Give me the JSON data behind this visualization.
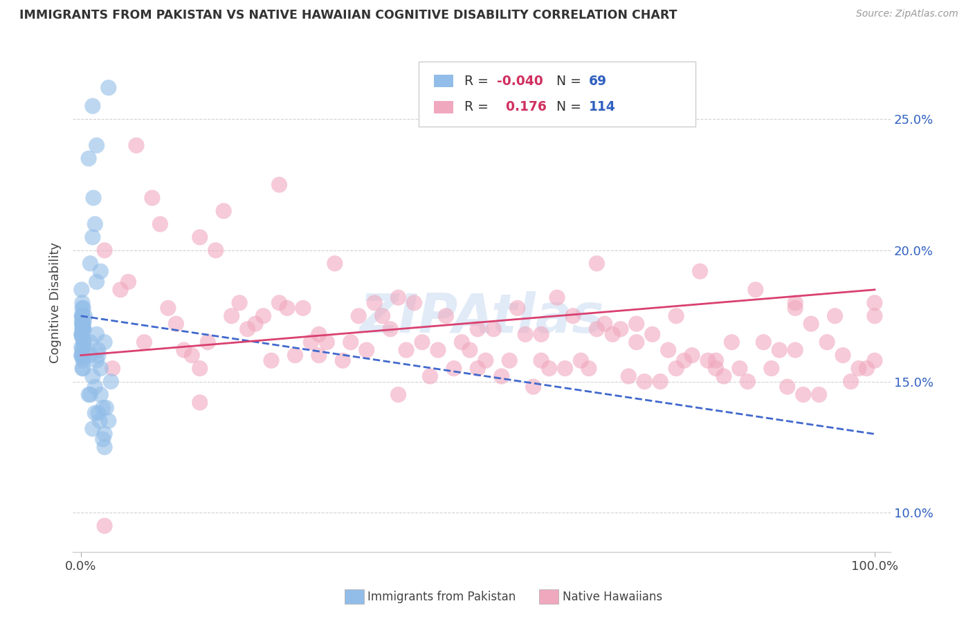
{
  "title": "IMMIGRANTS FROM PAKISTAN VS NATIVE HAWAIIAN COGNITIVE DISABILITY CORRELATION CHART",
  "source_text": "Source: ZipAtlas.com",
  "ylabel": "Cognitive Disability",
  "watermark": "ZIPAtlas",
  "legend_r1": "-0.040",
  "legend_n1": "69",
  "legend_r2": "0.176",
  "legend_n2": "114",
  "blue_color": "#92bde8",
  "pink_color": "#f0a8be",
  "trend_blue_color": "#4169cd",
  "trend_pink_color": "#d94070",
  "grid_color": "#cccccc",
  "background_color": "#ffffff",
  "yticks": [
    10.0,
    15.0,
    20.0,
    25.0
  ],
  "ymin": 8.5,
  "ymax": 27.5,
  "xmin": -1.0,
  "xmax": 102.0,
  "blue_trend_x": [
    0.0,
    100.0
  ],
  "blue_trend_y": [
    17.5,
    13.0
  ],
  "pink_trend_x": [
    0.0,
    100.0
  ],
  "pink_trend_y": [
    16.0,
    18.5
  ],
  "blue_x": [
    0.15,
    0.2,
    0.1,
    0.3,
    0.25,
    0.1,
    0.2,
    0.4,
    0.15,
    0.3,
    0.5,
    0.2,
    0.35,
    0.15,
    0.25,
    0.1,
    0.2,
    0.3,
    0.4,
    0.15,
    0.25,
    0.2,
    0.1,
    0.3,
    0.2,
    0.15,
    0.35,
    0.25,
    0.1,
    0.4,
    0.2,
    0.3,
    0.15,
    0.25,
    0.2,
    1.2,
    1.5,
    2.0,
    2.5,
    1.8,
    3.0,
    1.2,
    2.2,
    1.5,
    3.5,
    2.8,
    1.0,
    2.0,
    3.2,
    1.6,
    2.4,
    1.8,
    3.0,
    1.2,
    2.5,
    2.0,
    1.5,
    3.8,
    2.2,
    1.0,
    3.5,
    2.8,
    1.2,
    1.8,
    2.5,
    2.0,
    3.0,
    1.5,
    2.2
  ],
  "blue_y": [
    16.8,
    17.2,
    18.5,
    15.5,
    17.0,
    16.0,
    17.8,
    16.5,
    17.3,
    15.8,
    17.5,
    16.2,
    17.0,
    16.8,
    17.5,
    16.3,
    17.1,
    15.9,
    17.3,
    16.7,
    17.2,
    15.5,
    16.0,
    17.8,
    17.0,
    17.5,
    16.5,
    17.2,
    16.8,
    17.0,
    18.0,
    16.3,
    17.5,
    16.0,
    17.2,
    19.5,
    20.5,
    18.8,
    19.2,
    21.0,
    13.0,
    14.5,
    13.8,
    25.5,
    26.2,
    12.8,
    23.5,
    24.0,
    14.0,
    22.0,
    13.5,
    14.8,
    16.5,
    16.0,
    15.5,
    16.8,
    15.2,
    15.0,
    16.2,
    14.5,
    13.5,
    14.0,
    16.5,
    13.8,
    14.5,
    15.8,
    12.5,
    13.2,
    16.0
  ],
  "pink_x": [
    5.0,
    12.0,
    18.0,
    25.0,
    30.0,
    38.0,
    42.0,
    48.0,
    55.0,
    60.0,
    65.0,
    72.0,
    78.0,
    85.0,
    90.0,
    95.0,
    8.0,
    15.0,
    22.0,
    28.0,
    35.0,
    45.0,
    52.0,
    58.0,
    62.0,
    68.0,
    75.0,
    82.0,
    88.0,
    98.0,
    3.0,
    10.0,
    20.0,
    32.0,
    40.0,
    50.0,
    58.0,
    70.0,
    80.0,
    92.0,
    6.0,
    16.0,
    26.0,
    36.0,
    46.0,
    56.0,
    66.0,
    76.0,
    86.0,
    96.0,
    4.0,
    14.0,
    24.0,
    34.0,
    44.0,
    54.0,
    64.0,
    74.0,
    84.0,
    94.0,
    7.0,
    17.0,
    27.0,
    37.0,
    47.0,
    57.0,
    67.0,
    77.0,
    87.0,
    97.0,
    9.0,
    19.0,
    29.0,
    39.0,
    49.0,
    59.0,
    69.0,
    79.0,
    89.0,
    99.0,
    11.0,
    21.0,
    31.0,
    41.0,
    51.0,
    61.0,
    71.0,
    81.0,
    91.0,
    100.0,
    13.0,
    23.0,
    33.0,
    43.0,
    53.0,
    63.0,
    73.0,
    83.0,
    93.0,
    3.0,
    100.0,
    100.0,
    90.0,
    70.0,
    50.0,
    15.0,
    25.0,
    40.0,
    15.0,
    30.0,
    75.0,
    90.0,
    65.0,
    80.0
  ],
  "pink_y": [
    18.5,
    17.2,
    21.5,
    22.5,
    16.8,
    17.5,
    18.0,
    16.5,
    17.8,
    18.2,
    19.5,
    16.8,
    19.2,
    18.5,
    18.0,
    17.5,
    16.5,
    20.5,
    17.2,
    17.8,
    17.5,
    16.2,
    17.0,
    15.8,
    17.5,
    17.0,
    15.5,
    16.5,
    16.2,
    15.5,
    20.0,
    21.0,
    18.0,
    19.5,
    18.2,
    17.0,
    16.8,
    16.5,
    15.8,
    17.2,
    18.8,
    16.5,
    17.8,
    16.2,
    17.5,
    16.8,
    17.2,
    15.8,
    16.5,
    16.0,
    15.5,
    16.0,
    15.8,
    16.5,
    15.2,
    15.8,
    15.5,
    16.2,
    15.0,
    16.5,
    24.0,
    20.0,
    16.0,
    18.0,
    15.5,
    14.8,
    16.8,
    16.0,
    15.5,
    15.0,
    22.0,
    17.5,
    16.5,
    17.0,
    16.2,
    15.5,
    15.2,
    15.8,
    14.8,
    15.5,
    17.8,
    17.0,
    16.5,
    16.2,
    15.8,
    15.5,
    15.0,
    15.2,
    14.5,
    18.0,
    16.2,
    17.5,
    15.8,
    16.5,
    15.2,
    15.8,
    15.0,
    15.5,
    14.5,
    9.5,
    15.8,
    17.5,
    17.8,
    17.2,
    15.5,
    15.5,
    18.0,
    14.5,
    14.2,
    16.0,
    17.5,
    16.2,
    17.0,
    15.5
  ]
}
